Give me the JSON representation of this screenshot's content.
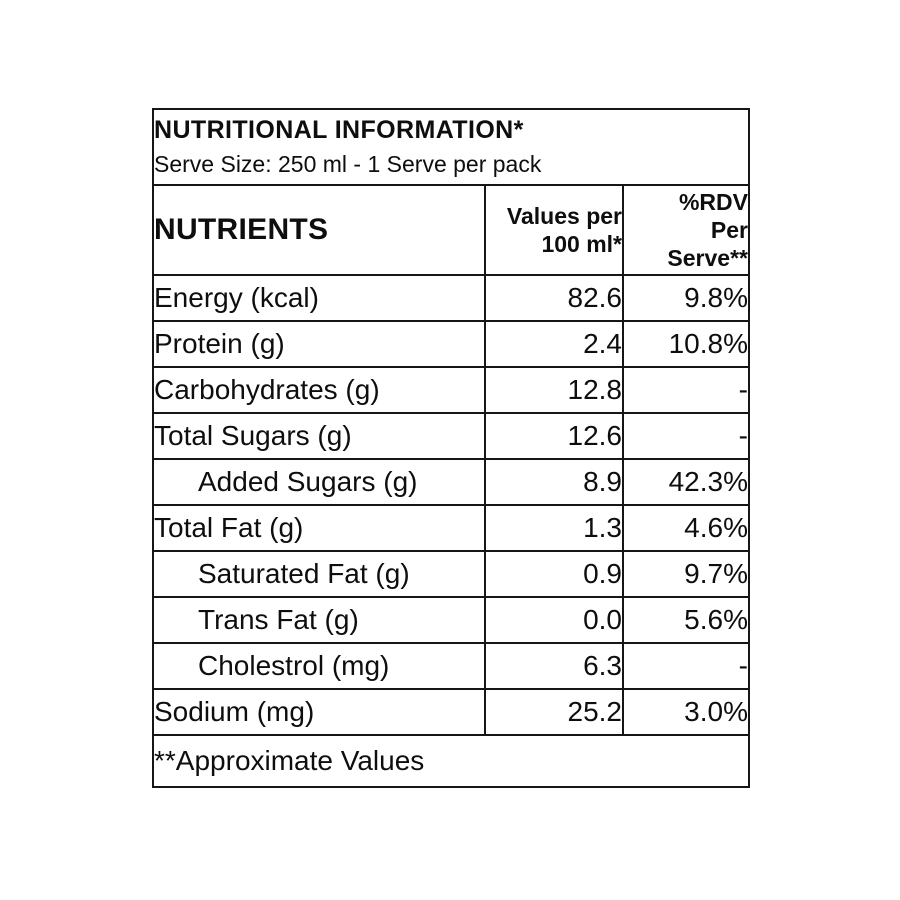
{
  "label": {
    "title": "NUTRITIONAL INFORMATION*",
    "subtitle": "Serve Size: 250 ml - 1 Serve per pack",
    "columns": {
      "nutrients": "NUTRIENTS",
      "values": "Values per\n100 ml*",
      "rdv": "%RDV\nPer\nServe**"
    },
    "rows": [
      {
        "name": "Energy (kcal)",
        "value": "82.6",
        "rdv": "9.8%"
      },
      {
        "name": "Protein (g)",
        "value": "2.4",
        "rdv": "10.8%"
      },
      {
        "name": "Carbohydrates (g)",
        "value": "12.8",
        "rdv": "-"
      },
      {
        "name": "Total Sugars (g)",
        "value": "12.6",
        "rdv": "-"
      },
      {
        "name": "Added Sugars (g)",
        "value": "8.9",
        "rdv": "42.3%"
      },
      {
        "name": "Total Fat (g)",
        "value": "1.3",
        "rdv": "4.6%"
      },
      {
        "name": "Saturated Fat (g)",
        "value": "0.9",
        "rdv": "9.7%"
      },
      {
        "name": "Trans Fat (g)",
        "value": "0.0",
        "rdv": "5.6%"
      },
      {
        "name": "Cholestrol (mg)",
        "value": "6.3",
        "rdv": "-"
      },
      {
        "name": "Sodium (mg)",
        "value": "25.2",
        "rdv": "3.0%"
      }
    ],
    "footnote": "**Approximate Values",
    "colors": {
      "background": "#ffffff",
      "border": "#161616",
      "text": "#0e0e0e"
    }
  }
}
